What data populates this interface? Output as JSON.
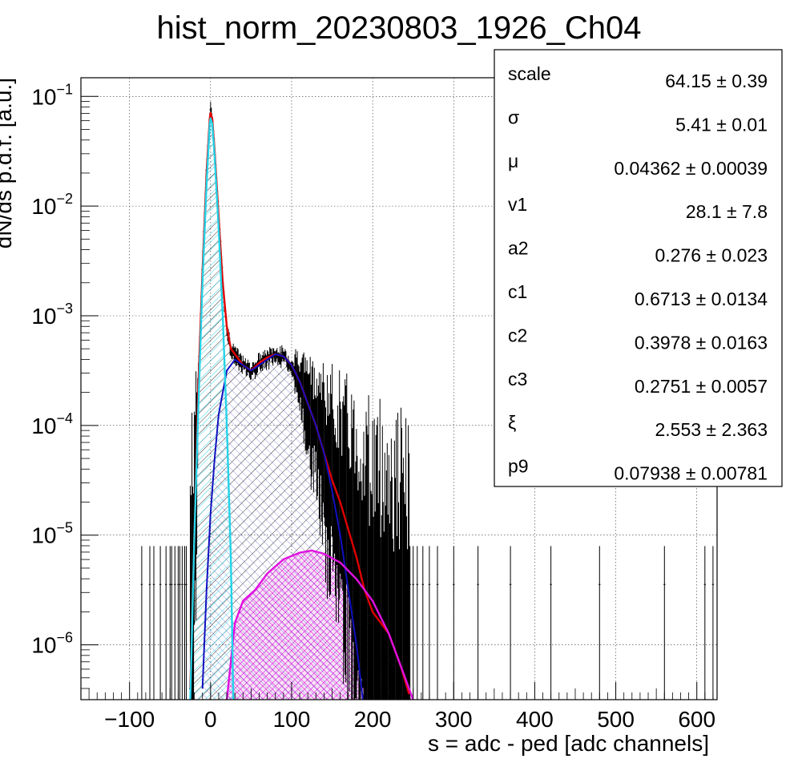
{
  "chart_data": {
    "type": "histogram",
    "title": "hist_norm_20230803_1926_Ch04",
    "xlabel": "s = adc - ped [adc channels]",
    "ylabel": "dN/ds p.d.f. [a.u.]",
    "x_range": [
      -160,
      625
    ],
    "y_range_log10": [
      -6.5,
      -0.83
    ],
    "y_log": true,
    "grid": true,
    "x_ticks": [
      {
        "v": -100,
        "label": "−100"
      },
      {
        "v": 0,
        "label": "0"
      },
      {
        "v": 100,
        "label": "100"
      },
      {
        "v": 200,
        "label": "200"
      },
      {
        "v": 300,
        "label": "300"
      },
      {
        "v": 400,
        "label": "400"
      },
      {
        "v": 500,
        "label": "500"
      },
      {
        "v": 600,
        "label": "600"
      }
    ],
    "y_ticks": [
      {
        "exp": -1,
        "base": "10",
        "sup": "−1"
      },
      {
        "exp": -2,
        "base": "10",
        "sup": "−2"
      },
      {
        "exp": -3,
        "base": "10",
        "sup": "−3"
      },
      {
        "exp": -4,
        "base": "10",
        "sup": "−4"
      },
      {
        "exp": -5,
        "base": "10",
        "sup": "−5"
      },
      {
        "exp": -6,
        "base": "10",
        "sup": "−6"
      }
    ],
    "colors": {
      "histogram": "#000000",
      "total_fit": "#e00000",
      "pedestal": "#22d3e8",
      "one_pe": "#1010c0",
      "two_pe": "#e010e0",
      "two_pe_fill": "#f5e0f5"
    },
    "curves": [
      {
        "id": "total_fit",
        "points": [
          [
            -25,
            -6.4
          ],
          [
            -15,
            -3.6
          ],
          [
            -10,
            -2.6
          ],
          [
            -5,
            -1.7
          ],
          [
            -1,
            -1.2
          ],
          [
            0,
            -1.15
          ],
          [
            2,
            -1.2
          ],
          [
            5,
            -1.5
          ],
          [
            10,
            -2.1
          ],
          [
            15,
            -2.7
          ],
          [
            20,
            -3.1
          ],
          [
            25,
            -3.3
          ],
          [
            30,
            -3.35
          ],
          [
            40,
            -3.45
          ],
          [
            50,
            -3.5
          ],
          [
            60,
            -3.43
          ],
          [
            70,
            -3.38
          ],
          [
            80,
            -3.35
          ],
          [
            90,
            -3.37
          ],
          [
            100,
            -3.45
          ],
          [
            110,
            -3.6
          ],
          [
            120,
            -3.8
          ],
          [
            130,
            -4.0
          ],
          [
            140,
            -4.25
          ],
          [
            150,
            -4.5
          ],
          [
            160,
            -4.7
          ],
          [
            170,
            -4.95
          ],
          [
            180,
            -5.2
          ],
          [
            190,
            -5.5
          ],
          [
            200,
            -5.7
          ],
          [
            220,
            -5.9
          ],
          [
            235,
            -6.2
          ],
          [
            245,
            -6.45
          ]
        ]
      },
      {
        "id": "pedestal",
        "points": [
          [
            -25,
            -6.5
          ],
          [
            -20,
            -5.0
          ],
          [
            -15,
            -3.8
          ],
          [
            -10,
            -2.7
          ],
          [
            -5,
            -1.8
          ],
          [
            -1,
            -1.25
          ],
          [
            0,
            -1.2
          ],
          [
            2,
            -1.25
          ],
          [
            5,
            -1.55
          ],
          [
            10,
            -2.2
          ],
          [
            15,
            -3.0
          ],
          [
            20,
            -4.0
          ],
          [
            25,
            -5.2
          ],
          [
            28,
            -6.5
          ]
        ]
      },
      {
        "id": "one_pe",
        "points": [
          [
            -10,
            -6.4
          ],
          [
            -5,
            -5.5
          ],
          [
            0,
            -4.8
          ],
          [
            5,
            -4.3
          ],
          [
            10,
            -3.9
          ],
          [
            20,
            -3.5
          ],
          [
            30,
            -3.4
          ],
          [
            40,
            -3.45
          ],
          [
            50,
            -3.5
          ],
          [
            60,
            -3.45
          ],
          [
            70,
            -3.4
          ],
          [
            80,
            -3.35
          ],
          [
            90,
            -3.37
          ],
          [
            100,
            -3.45
          ],
          [
            110,
            -3.6
          ],
          [
            120,
            -3.8
          ],
          [
            130,
            -4.0
          ],
          [
            140,
            -4.25
          ],
          [
            150,
            -4.6
          ],
          [
            160,
            -5.0
          ],
          [
            170,
            -5.5
          ],
          [
            180,
            -6.0
          ],
          [
            188,
            -6.5
          ]
        ]
      },
      {
        "id": "two_pe",
        "points": [
          [
            20,
            -6.5
          ],
          [
            30,
            -5.8
          ],
          [
            40,
            -5.6
          ],
          [
            55,
            -5.5
          ],
          [
            70,
            -5.35
          ],
          [
            90,
            -5.22
          ],
          [
            110,
            -5.16
          ],
          [
            125,
            -5.14
          ],
          [
            140,
            -5.17
          ],
          [
            160,
            -5.25
          ],
          [
            180,
            -5.4
          ],
          [
            200,
            -5.6
          ],
          [
            220,
            -5.9
          ],
          [
            240,
            -6.3
          ],
          [
            250,
            -6.5
          ]
        ]
      }
    ],
    "stats_box": {
      "rows": [
        {
          "name": "scale",
          "value": "64.15 ± 0.39"
        },
        {
          "name": "σ",
          "value": "5.41 ± 0.01"
        },
        {
          "name": "μ",
          "value": "0.04362 ± 0.00039"
        },
        {
          "name": "v1",
          "value": "28.1 ± 7.8"
        },
        {
          "name": "a2",
          "value": "0.276 ± 0.023"
        },
        {
          "name": "c1",
          "value": "0.6713 ± 0.0134"
        },
        {
          "name": "c2",
          "value": "0.3978 ± 0.0163"
        },
        {
          "name": "c3",
          "value": "0.2751 ± 0.0057"
        },
        {
          "name": "ξ",
          "value": "2.553 ± 2.363"
        },
        {
          "name": "p9",
          "value": "0.07938 ± 0.00781"
        }
      ]
    }
  }
}
